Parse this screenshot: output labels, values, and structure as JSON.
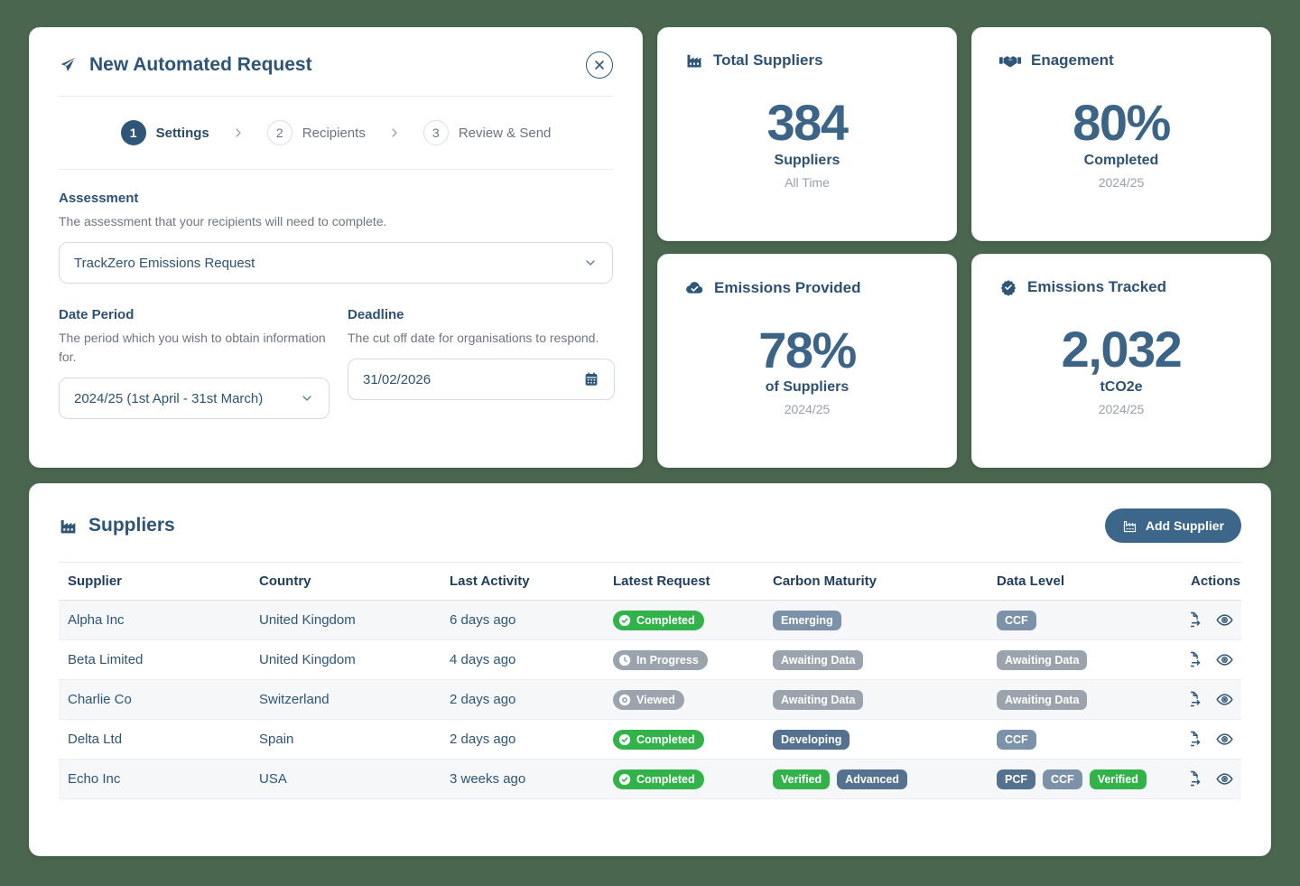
{
  "colors": {
    "page_bg": "#4a664e",
    "accent_navy": "#2f5578",
    "big_number": "#3c6487",
    "green_badge": "#31b34a",
    "gray_badge": "#9ba3ad",
    "slate_badge": "#7b92a9",
    "slate_dark_badge": "#54718f",
    "add_button_bg": "#3c678b",
    "row_stripe": "#f5f7f9"
  },
  "request_card": {
    "icon": "paper-plane-icon",
    "title": "New Automated Request",
    "close_icon": "close-icon",
    "steps": [
      {
        "num": "1",
        "label": "Settings",
        "active": true
      },
      {
        "num": "2",
        "label": "Recipients",
        "active": false
      },
      {
        "num": "3",
        "label": "Review & Send",
        "active": false
      }
    ],
    "assessment": {
      "label": "Assessment",
      "help": "The assessment that your recipients will need to complete.",
      "value": "TrackZero Emissions Request",
      "icon": "chevron-down-icon"
    },
    "date_period": {
      "label": "Date Period",
      "help": "The period which you wish to obtain information for.",
      "value": "2024/25 (1st April - 31st March)",
      "icon": "chevron-down-icon"
    },
    "deadline": {
      "label": "Deadline",
      "help": "The cut off date for organisations to respond.",
      "value": "31/02/2026",
      "icon": "calendar-icon"
    }
  },
  "stats": [
    {
      "icon": "factory-icon",
      "title": "Total Suppliers",
      "value": "384",
      "label": "Suppliers",
      "sub": "All Time"
    },
    {
      "icon": "handshake-icon",
      "title": "Enagement",
      "value": "80%",
      "label": "Completed",
      "sub": "2024/25"
    },
    {
      "icon": "cloud-check-icon",
      "title": "Emissions Provided",
      "value": "78%",
      "label": "of Suppliers",
      "sub": "2024/25"
    },
    {
      "icon": "badge-check-icon",
      "title": "Emissions Tracked",
      "value": "2,032",
      "label": "tCO2e",
      "sub": "2024/25"
    }
  ],
  "suppliers": {
    "icon": "factory-icon",
    "title": "Suppliers",
    "add_button": {
      "icon": "factory-outline-icon",
      "label": "Add Supplier"
    },
    "columns": [
      "Supplier",
      "Country",
      "Last Activity",
      "Latest Request",
      "Carbon Maturity",
      "Data Level",
      "Actions"
    ],
    "action_icons": [
      "file-export-icon",
      "eye-icon"
    ],
    "rows": [
      {
        "supplier": "Alpha Inc",
        "country": "United Kingdom",
        "last_activity": "6 days ago",
        "latest_request": {
          "label": "Completed",
          "variant": "green",
          "icon": "check-circle-icon"
        },
        "carbon_maturity": [
          {
            "label": "Emerging",
            "variant": "slate"
          }
        ],
        "data_level": [
          {
            "label": "CCF",
            "variant": "slate"
          }
        ]
      },
      {
        "supplier": "Beta Limited",
        "country": "United Kingdom",
        "last_activity": "4 days ago",
        "latest_request": {
          "label": "In Progress",
          "variant": "gray",
          "icon": "clock-icon"
        },
        "carbon_maturity": [
          {
            "label": "Awaiting Data",
            "variant": "gray"
          }
        ],
        "data_level": [
          {
            "label": "Awaiting Data",
            "variant": "gray"
          }
        ]
      },
      {
        "supplier": "Charlie Co",
        "country": "Switzerland",
        "last_activity": "2 days ago",
        "latest_request": {
          "label": "Viewed",
          "variant": "gray",
          "icon": "eye-badge-icon"
        },
        "carbon_maturity": [
          {
            "label": "Awaiting Data",
            "variant": "gray"
          }
        ],
        "data_level": [
          {
            "label": "Awaiting Data",
            "variant": "gray"
          }
        ]
      },
      {
        "supplier": "Delta Ltd",
        "country": "Spain",
        "last_activity": "2 days ago",
        "latest_request": {
          "label": "Completed",
          "variant": "green",
          "icon": "check-circle-icon"
        },
        "carbon_maturity": [
          {
            "label": "Developing",
            "variant": "slate-dark"
          }
        ],
        "data_level": [
          {
            "label": "CCF",
            "variant": "slate"
          }
        ]
      },
      {
        "supplier": "Echo Inc",
        "country": "USA",
        "last_activity": "3 weeks ago",
        "latest_request": {
          "label": "Completed",
          "variant": "green",
          "icon": "check-circle-icon"
        },
        "carbon_maturity": [
          {
            "label": "Verified",
            "variant": "green"
          },
          {
            "label": "Advanced",
            "variant": "slate-dark"
          }
        ],
        "data_level": [
          {
            "label": "PCF",
            "variant": "slate-dark"
          },
          {
            "label": "CCF",
            "variant": "slate"
          },
          {
            "label": "Verified",
            "variant": "green"
          }
        ]
      }
    ]
  }
}
